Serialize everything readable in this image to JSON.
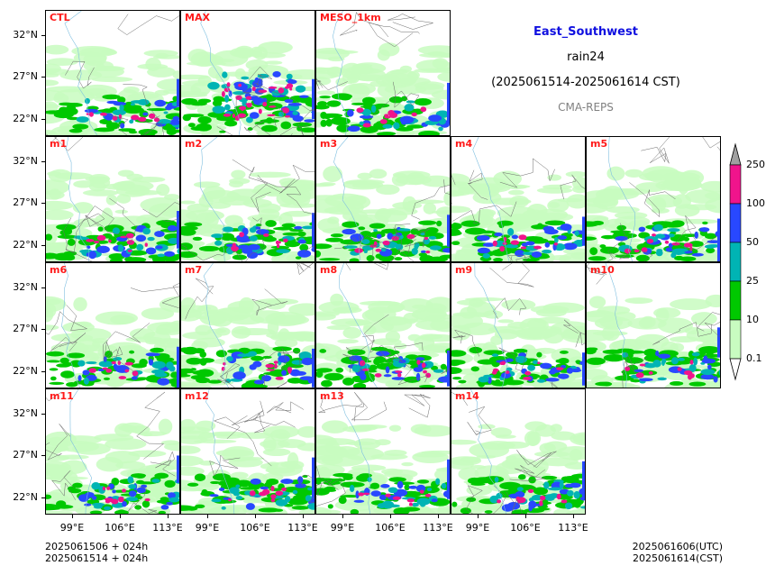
{
  "header": {
    "region": "East_Southwest",
    "variable": "rain24",
    "period": "(2025061514-2025061614 CST)",
    "system": "CMA-REPS"
  },
  "panels": [
    {
      "label": "CTL",
      "row": 0,
      "col": 0
    },
    {
      "label": "MAX",
      "row": 0,
      "col": 1
    },
    {
      "label": "MESO_1km",
      "row": 0,
      "col": 2
    },
    {
      "label": "m1",
      "row": 1,
      "col": 0
    },
    {
      "label": "m2",
      "row": 1,
      "col": 1
    },
    {
      "label": "m3",
      "row": 1,
      "col": 2
    },
    {
      "label": "m4",
      "row": 1,
      "col": 3
    },
    {
      "label": "m5",
      "row": 1,
      "col": 4
    },
    {
      "label": "m6",
      "row": 2,
      "col": 0
    },
    {
      "label": "m7",
      "row": 2,
      "col": 1
    },
    {
      "label": "m8",
      "row": 2,
      "col": 2
    },
    {
      "label": "m9",
      "row": 2,
      "col": 3
    },
    {
      "label": "m10",
      "row": 2,
      "col": 4
    },
    {
      "label": "m11",
      "row": 3,
      "col": 0
    },
    {
      "label": "m12",
      "row": 3,
      "col": 1
    },
    {
      "label": "m13",
      "row": 3,
      "col": 2
    },
    {
      "label": "m14",
      "row": 3,
      "col": 3
    }
  ],
  "axes": {
    "lat_ticks": [
      "32°N",
      "27°N",
      "22°N"
    ],
    "lon_ticks": [
      "99°E",
      "106°E",
      "113°E"
    ]
  },
  "colorbar": {
    "levels": [
      "0.1",
      "10",
      "25",
      "50",
      "100",
      "250"
    ],
    "colors": [
      "#ffffff",
      "#c8fcc0",
      "#00c800",
      "#00b4b4",
      "#2848ff",
      "#f0148c",
      "#a0a0a0"
    ]
  },
  "footer": {
    "init_utc": "2025061506  +  024h",
    "init_cst": "2025061514  +  024h",
    "valid_utc": "2025061606(UTC)",
    "valid_cst": "2025061614(CST)"
  },
  "chart_data": {
    "type": "heatmap",
    "title": "East_Southwest rain24 (2025061514-2025061614 CST)",
    "xlabel": "",
    "ylabel": "",
    "x_ticks": [
      "99°E",
      "106°E",
      "113°E"
    ],
    "y_ticks": [
      "32°N",
      "27°N",
      "22°N"
    ],
    "series": [
      {
        "name": "CTL",
        "intensity": "moderate"
      },
      {
        "name": "MAX",
        "intensity": "high"
      },
      {
        "name": "MESO_1km",
        "intensity": "moderate"
      },
      {
        "name": "m1",
        "intensity": "moderate"
      },
      {
        "name": "m2",
        "intensity": "moderate"
      },
      {
        "name": "m3",
        "intensity": "moderate"
      },
      {
        "name": "m4",
        "intensity": "moderate"
      },
      {
        "name": "m5",
        "intensity": "moderate"
      },
      {
        "name": "m6",
        "intensity": "moderate"
      },
      {
        "name": "m7",
        "intensity": "moderate"
      },
      {
        "name": "m8",
        "intensity": "moderate"
      },
      {
        "name": "m9",
        "intensity": "moderate"
      },
      {
        "name": "m10",
        "intensity": "moderate"
      },
      {
        "name": "m11",
        "intensity": "moderate"
      },
      {
        "name": "m12",
        "intensity": "moderate"
      },
      {
        "name": "m13",
        "intensity": "moderate"
      },
      {
        "name": "m14",
        "intensity": "moderate"
      }
    ],
    "colorbar_levels": [
      0.1,
      10,
      25,
      50,
      100,
      250
    ],
    "colorbar_extend": "both"
  }
}
